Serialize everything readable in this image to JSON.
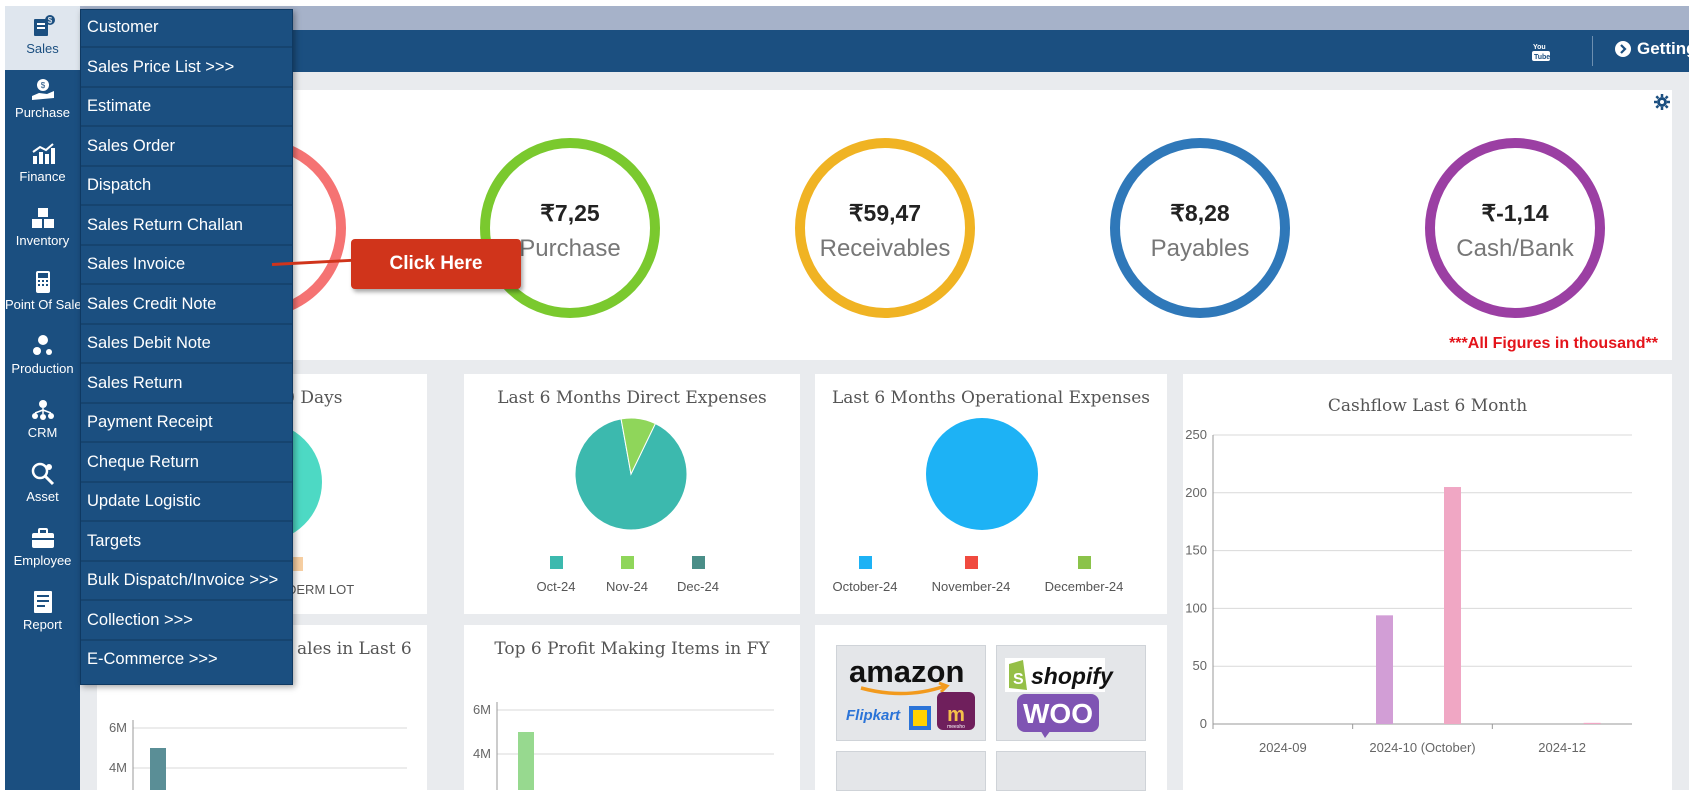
{
  "sidebar": {
    "items": [
      {
        "label": "Sales",
        "icon": "sales-icon"
      },
      {
        "label": "Purchase",
        "icon": "purchase-icon"
      },
      {
        "label": "Finance",
        "icon": "finance-icon"
      },
      {
        "label": "Inventory",
        "icon": "inventory-icon"
      },
      {
        "label": "Point Of Sale",
        "icon": "pos-icon"
      },
      {
        "label": "Production",
        "icon": "production-icon"
      },
      {
        "label": "CRM",
        "icon": "crm-icon"
      },
      {
        "label": "Asset",
        "icon": "asset-icon"
      },
      {
        "label": "Employee",
        "icon": "employee-icon"
      },
      {
        "label": "Report",
        "icon": "report-icon"
      }
    ]
  },
  "header": {
    "getting_started": "Getting Started",
    "youtube_icon": "youtube-icon"
  },
  "sales_menu": {
    "items": [
      "Customer",
      "Sales Price List >>>",
      "Estimate",
      "Sales Order",
      "Dispatch",
      "Sales Return Challan",
      "Sales Invoice",
      "Sales Credit Note",
      "Sales Debit Note",
      "Sales Return",
      "Payment Receipt",
      "Cheque Return",
      "Update Logistic",
      "Targets",
      "Bulk Dispatch/Invoice >>>",
      "Collection >>>",
      "E-Commerce >>>"
    ]
  },
  "callout": {
    "label": "Click Here"
  },
  "kpis": [
    {
      "value": "₹7,25",
      "name": "Purchase",
      "color": "#7ac92e"
    },
    {
      "value": "₹59,47",
      "name": "Receivables",
      "color": "#f0b323"
    },
    {
      "value": "₹8,28",
      "name": "Payables",
      "color": "#2f78b9"
    },
    {
      "value": "₹-1,14",
      "name": "Cash/Bank",
      "color": "#9b3fa3"
    }
  ],
  "partial_ring_color": "#f57373",
  "figures_note": "***All Figures in thousand**",
  "cards": {
    "top_sales_partial_title": "n 30 Days",
    "top_sales_partial_legend": "DERM LOT",
    "direct_expenses_title": "Last 6 Months Direct Expenses",
    "operational_expenses_title": "Last 6 Months Operational Expenses",
    "sales_last6_partial_title": "ales in Last 6",
    "profit_items_title": "Top 6 Profit Making Items in FY",
    "cashflow_title": "Cashflow Last 6 Month"
  },
  "chart_data": [
    {
      "type": "pie",
      "title": "Last 6 Months Direct Expenses",
      "categories": [
        "Oct-24",
        "Nov-24",
        "Dec-24"
      ],
      "values": [
        90,
        10,
        0
      ],
      "colors": [
        "#3cb9ae",
        "#8fd65a",
        "#4a8e88"
      ]
    },
    {
      "type": "pie",
      "title": "Last 6 Months Operational Expenses",
      "categories": [
        "October-24",
        "November-24",
        "December-24"
      ],
      "values": [
        100,
        0,
        0
      ],
      "colors": [
        "#1db2f5",
        "#f04a3f",
        "#8bc34a"
      ]
    },
    {
      "type": "bar",
      "title": "Cashflow Last 6 Month",
      "categories": [
        "2024-09",
        "2024-10 (October)",
        "2024-12"
      ],
      "series": [
        {
          "values": [
            0,
            94,
            0
          ],
          "color": "#d29ed6"
        },
        {
          "values": [
            0,
            205,
            1
          ],
          "color": "#f0a7c4"
        }
      ],
      "ylim": [
        0,
        250
      ],
      "yticks": [
        "0",
        "50",
        "100",
        "150",
        "200",
        "250"
      ],
      "grid": true
    },
    {
      "type": "bar",
      "title": "Top 6 Profit Making Items in FY",
      "values": [
        5
      ],
      "yticks": [
        "4M",
        "6M"
      ],
      "color": "#97d98f"
    },
    {
      "type": "bar",
      "title": "ales in Last 6",
      "values": [
        5
      ],
      "yticks": [
        "4M",
        "6M"
      ],
      "color": "#5a8e96"
    }
  ],
  "ecommerce": {
    "brands": [
      "amazon",
      "Flipkart",
      "meesho",
      "shopify",
      "WOO"
    ]
  }
}
